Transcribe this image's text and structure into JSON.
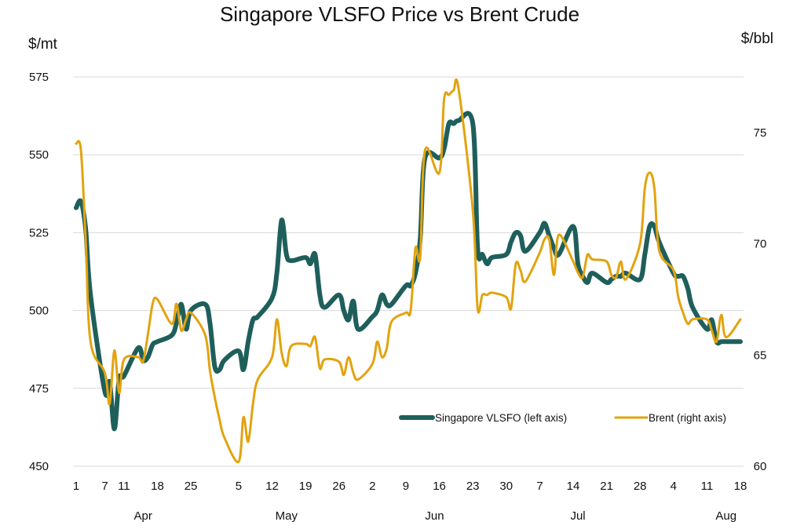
{
  "chart_data": {
    "type": "line",
    "title": "Singapore VLSFO Price vs Brent Crude",
    "ylabel_left": "$/mt",
    "ylabel_right": "$/bbl",
    "ylim_left": [
      450,
      575
    ],
    "ylim_right": [
      60,
      77.5
    ],
    "yticks_left": [
      "450",
      "475",
      "500",
      "525",
      "550",
      "575"
    ],
    "yticks_right": [
      "60",
      "65",
      "70",
      "75"
    ],
    "grid": true,
    "legend_position": "bottom-right",
    "x_tick_labels": [
      "1",
      "7",
      "11",
      "18",
      "25",
      "5",
      "12",
      "19",
      "26",
      "2",
      "9",
      "16",
      "23",
      "30",
      "7",
      "14",
      "21",
      "28",
      "4",
      "11",
      "18"
    ],
    "x_tick_dates": [
      "2025-04-01",
      "2025-04-07",
      "2025-04-11",
      "2025-04-18",
      "2025-04-25",
      "2025-05-05",
      "2025-05-12",
      "2025-05-19",
      "2025-05-26",
      "2025-06-02",
      "2025-06-09",
      "2025-06-16",
      "2025-06-23",
      "2025-06-30",
      "2025-07-07",
      "2025-07-14",
      "2025-07-21",
      "2025-07-28",
      "2025-08-04",
      "2025-08-11",
      "2025-08-18"
    ],
    "month_labels": [
      {
        "label": "Apr",
        "date": "2025-04-15"
      },
      {
        "label": "May",
        "date": "2025-05-15"
      },
      {
        "label": "Jun",
        "date": "2025-06-15"
      },
      {
        "label": "Jul",
        "date": "2025-07-15"
      },
      {
        "label": "Aug",
        "date": "2025-08-15"
      }
    ],
    "series": [
      {
        "name": "Singapore VLSFO (left axis)",
        "axis": "left",
        "color": "#1f5f5b",
        "points": [
          [
            "2025-04-01",
            533
          ],
          [
            "2025-04-02",
            535
          ],
          [
            "2025-04-03",
            526
          ],
          [
            "2025-04-04",
            505
          ],
          [
            "2025-04-07",
            474
          ],
          [
            "2025-04-08",
            477
          ],
          [
            "2025-04-09",
            462
          ],
          [
            "2025-04-10",
            478
          ],
          [
            "2025-04-11",
            479
          ],
          [
            "2025-04-14",
            488
          ],
          [
            "2025-04-15",
            484
          ],
          [
            "2025-04-16",
            485
          ],
          [
            "2025-04-17",
            489
          ],
          [
            "2025-04-18",
            490
          ],
          [
            "2025-04-21",
            492
          ],
          [
            "2025-04-22",
            496
          ],
          [
            "2025-04-23",
            502
          ],
          [
            "2025-04-24",
            494
          ],
          [
            "2025-04-25",
            500
          ],
          [
            "2025-04-28",
            502
          ],
          [
            "2025-04-29",
            496
          ],
          [
            "2025-04-30",
            482
          ],
          [
            "2025-05-01",
            481
          ],
          [
            "2025-05-02",
            484
          ],
          [
            "2025-05-05",
            487
          ],
          [
            "2025-05-06",
            481
          ],
          [
            "2025-05-07",
            490
          ],
          [
            "2025-05-08",
            497
          ],
          [
            "2025-05-09",
            498
          ],
          [
            "2025-05-12",
            504
          ],
          [
            "2025-05-13",
            512
          ],
          [
            "2025-05-14",
            529
          ],
          [
            "2025-05-15",
            518
          ],
          [
            "2025-05-16",
            516
          ],
          [
            "2025-05-19",
            517
          ],
          [
            "2025-05-20",
            515
          ],
          [
            "2025-05-21",
            518
          ],
          [
            "2025-05-22",
            505
          ],
          [
            "2025-05-23",
            501
          ],
          [
            "2025-05-26",
            505
          ],
          [
            "2025-05-27",
            500
          ],
          [
            "2025-05-28",
            497
          ],
          [
            "2025-05-29",
            503
          ],
          [
            "2025-05-30",
            494
          ],
          [
            "2025-06-02",
            498
          ],
          [
            "2025-06-03",
            500
          ],
          [
            "2025-06-04",
            505
          ],
          [
            "2025-06-05",
            502
          ],
          [
            "2025-06-06",
            502
          ],
          [
            "2025-06-09",
            508
          ],
          [
            "2025-06-10",
            508
          ],
          [
            "2025-06-11",
            512
          ],
          [
            "2025-06-12",
            523
          ],
          [
            "2025-06-13",
            549
          ],
          [
            "2025-06-16",
            549
          ],
          [
            "2025-06-17",
            552
          ],
          [
            "2025-06-18",
            560
          ],
          [
            "2025-06-19",
            560
          ],
          [
            "2025-06-20",
            561
          ],
          [
            "2025-06-23",
            560
          ],
          [
            "2025-06-24",
            520
          ],
          [
            "2025-06-25",
            518
          ],
          [
            "2025-06-26",
            515
          ],
          [
            "2025-06-27",
            517
          ],
          [
            "2025-06-30",
            518
          ],
          [
            "2025-07-01",
            522
          ],
          [
            "2025-07-02",
            525
          ],
          [
            "2025-07-03",
            524
          ],
          [
            "2025-07-04",
            519
          ],
          [
            "2025-07-07",
            525
          ],
          [
            "2025-07-08",
            528
          ],
          [
            "2025-07-09",
            524
          ],
          [
            "2025-07-10",
            520
          ],
          [
            "2025-07-11",
            518
          ],
          [
            "2025-07-14",
            527
          ],
          [
            "2025-07-15",
            515
          ],
          [
            "2025-07-16",
            511
          ],
          [
            "2025-07-17",
            509
          ],
          [
            "2025-07-18",
            512
          ],
          [
            "2025-07-21",
            509
          ],
          [
            "2025-07-22",
            510
          ],
          [
            "2025-07-23",
            511
          ],
          [
            "2025-07-24",
            511
          ],
          [
            "2025-07-25",
            512
          ],
          [
            "2025-07-28",
            510
          ],
          [
            "2025-07-29",
            518
          ],
          [
            "2025-07-30",
            527
          ],
          [
            "2025-07-31",
            527
          ],
          [
            "2025-08-01",
            522
          ],
          [
            "2025-08-04",
            512
          ],
          [
            "2025-08-05",
            511
          ],
          [
            "2025-08-06",
            511
          ],
          [
            "2025-08-07",
            507
          ],
          [
            "2025-08-08",
            501
          ],
          [
            "2025-08-11",
            494
          ],
          [
            "2025-08-12",
            497
          ],
          [
            "2025-08-13",
            490
          ],
          [
            "2025-08-14",
            490
          ],
          [
            "2025-08-15",
            490
          ],
          [
            "2025-08-18",
            490
          ]
        ]
      },
      {
        "name": "Brent (right axis)",
        "axis": "right",
        "color": "#e2a30f",
        "points": [
          [
            "2025-04-01",
            74.5
          ],
          [
            "2025-04-02",
            74.2
          ],
          [
            "2025-04-03",
            70.1
          ],
          [
            "2025-04-04",
            65.6
          ],
          [
            "2025-04-07",
            64.2
          ],
          [
            "2025-04-08",
            62.8
          ],
          [
            "2025-04-09",
            65.2
          ],
          [
            "2025-04-10",
            63.3
          ],
          [
            "2025-04-11",
            64.8
          ],
          [
            "2025-04-14",
            64.9
          ],
          [
            "2025-04-15",
            64.7
          ],
          [
            "2025-04-16",
            65.9
          ],
          [
            "2025-04-17",
            67.3
          ],
          [
            "2025-04-18",
            67.5
          ],
          [
            "2025-04-21",
            66.4
          ],
          [
            "2025-04-22",
            67.3
          ],
          [
            "2025-04-23",
            66.1
          ],
          [
            "2025-04-24",
            66.6
          ],
          [
            "2025-04-25",
            66.9
          ],
          [
            "2025-04-28",
            65.9
          ],
          [
            "2025-04-29",
            64.3
          ],
          [
            "2025-04-30",
            63.1
          ],
          [
            "2025-05-01",
            62.1
          ],
          [
            "2025-05-02",
            61.3
          ],
          [
            "2025-05-05",
            60.2
          ],
          [
            "2025-05-06",
            62.2
          ],
          [
            "2025-05-07",
            61.1
          ],
          [
            "2025-05-08",
            62.8
          ],
          [
            "2025-05-09",
            63.9
          ],
          [
            "2025-05-12",
            64.9
          ],
          [
            "2025-05-13",
            66.6
          ],
          [
            "2025-05-14",
            65.1
          ],
          [
            "2025-05-15",
            64.5
          ],
          [
            "2025-05-16",
            65.4
          ],
          [
            "2025-05-19",
            65.5
          ],
          [
            "2025-05-20",
            65.4
          ],
          [
            "2025-05-21",
            65.8
          ],
          [
            "2025-05-22",
            64.4
          ],
          [
            "2025-05-23",
            64.8
          ],
          [
            "2025-05-26",
            64.7
          ],
          [
            "2025-05-27",
            64.1
          ],
          [
            "2025-05-28",
            64.9
          ],
          [
            "2025-05-29",
            64.2
          ],
          [
            "2025-05-30",
            63.9
          ],
          [
            "2025-06-02",
            64.6
          ],
          [
            "2025-06-03",
            65.6
          ],
          [
            "2025-06-04",
            64.9
          ],
          [
            "2025-06-05",
            65.3
          ],
          [
            "2025-06-06",
            66.5
          ],
          [
            "2025-06-09",
            66.9
          ],
          [
            "2025-06-10",
            67.0
          ],
          [
            "2025-06-11",
            69.8
          ],
          [
            "2025-06-12",
            69.4
          ],
          [
            "2025-06-13",
            74.2
          ],
          [
            "2025-06-16",
            73.2
          ],
          [
            "2025-06-17",
            76.5
          ],
          [
            "2025-06-18",
            76.7
          ],
          [
            "2025-06-19",
            76.9
          ],
          [
            "2025-06-20",
            77.0
          ],
          [
            "2025-06-23",
            71.5
          ],
          [
            "2025-06-24",
            67.1
          ],
          [
            "2025-06-25",
            67.7
          ],
          [
            "2025-06-26",
            67.7
          ],
          [
            "2025-06-27",
            67.8
          ],
          [
            "2025-06-30",
            67.6
          ],
          [
            "2025-07-01",
            67.1
          ],
          [
            "2025-07-02",
            69.1
          ],
          [
            "2025-07-03",
            68.8
          ],
          [
            "2025-07-04",
            68.3
          ],
          [
            "2025-07-07",
            69.6
          ],
          [
            "2025-07-08",
            70.2
          ],
          [
            "2025-07-09",
            70.2
          ],
          [
            "2025-07-10",
            68.6
          ],
          [
            "2025-07-11",
            70.4
          ],
          [
            "2025-07-14",
            69.2
          ],
          [
            "2025-07-15",
            68.7
          ],
          [
            "2025-07-16",
            68.5
          ],
          [
            "2025-07-17",
            69.5
          ],
          [
            "2025-07-18",
            69.3
          ],
          [
            "2025-07-21",
            69.2
          ],
          [
            "2025-07-22",
            68.6
          ],
          [
            "2025-07-23",
            68.5
          ],
          [
            "2025-07-24",
            69.2
          ],
          [
            "2025-07-25",
            68.4
          ],
          [
            "2025-07-28",
            70.0
          ],
          [
            "2025-07-29",
            72.5
          ],
          [
            "2025-07-30",
            73.2
          ],
          [
            "2025-07-31",
            72.5
          ],
          [
            "2025-08-01",
            69.7
          ],
          [
            "2025-08-04",
            68.8
          ],
          [
            "2025-08-05",
            67.6
          ],
          [
            "2025-08-06",
            66.9
          ],
          [
            "2025-08-07",
            66.4
          ],
          [
            "2025-08-08",
            66.6
          ],
          [
            "2025-08-11",
            66.6
          ],
          [
            "2025-08-12",
            66.1
          ],
          [
            "2025-08-13",
            65.6
          ],
          [
            "2025-08-14",
            66.8
          ],
          [
            "2025-08-15",
            65.8
          ],
          [
            "2025-08-18",
            66.6
          ]
        ]
      }
    ]
  }
}
